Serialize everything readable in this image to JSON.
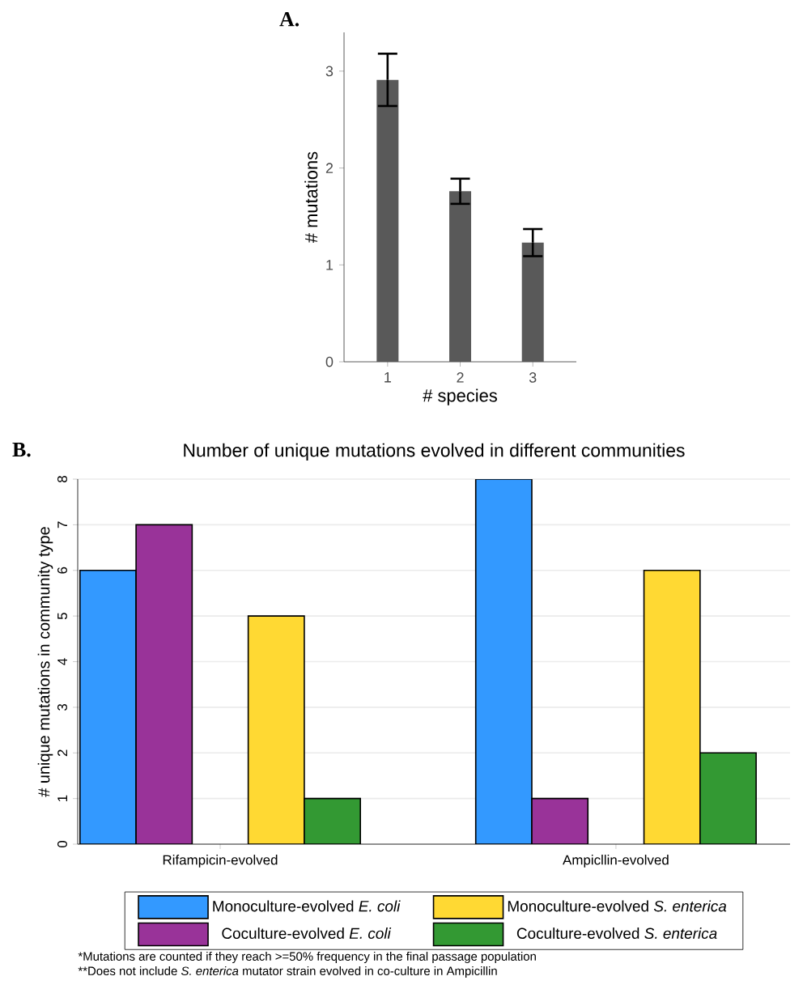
{
  "chart_data": [
    {
      "type": "bar",
      "xlabel": "# species",
      "ylabel": "# mutations",
      "annotations": [
        "A."
      ],
      "categories": [
        "1",
        "2",
        "3"
      ],
      "values": [
        2.91,
        1.76,
        1.23
      ],
      "errors": [
        0.27,
        0.13,
        0.14
      ],
      "color": "#595959",
      "ylim": [
        0,
        3.4
      ],
      "yticks": [
        0,
        1,
        2,
        3
      ],
      "grid": false
    },
    {
      "type": "bar",
      "title": "Number of unique mutations evolved in different communities",
      "ylabel": "# unique mutations in community type",
      "annotations": [
        "B.",
        "*Mutations are counted if they reach >=50% frequency in the final passage population",
        "**Does not include *S. enterica* mutator strain evolved in co-culture in Ampicillin"
      ],
      "categories": [
        "Rifampicin-evolved",
        "Ampicllin-evolved"
      ],
      "series": [
        {
          "name": "Monoculture-evolved *E. coli*",
          "color": "#3399ff",
          "values": [
            6,
            8
          ]
        },
        {
          "name": "Coculture-evolved *E. coli*",
          "color": "#993399",
          "values": [
            7,
            1
          ]
        },
        {
          "name": "Monoculture-evolved *S. enterica*",
          "color": "#ffd933",
          "values": [
            5,
            6
          ]
        },
        {
          "name": "Coculture-evolved *S. enterica*",
          "color": "#339933",
          "values": [
            1,
            2
          ]
        }
      ],
      "ylim": [
        0,
        8
      ],
      "yticks": [
        0,
        1,
        2,
        3,
        4,
        5,
        6,
        7,
        8
      ],
      "grid": "y",
      "legend": "bottom"
    }
  ]
}
